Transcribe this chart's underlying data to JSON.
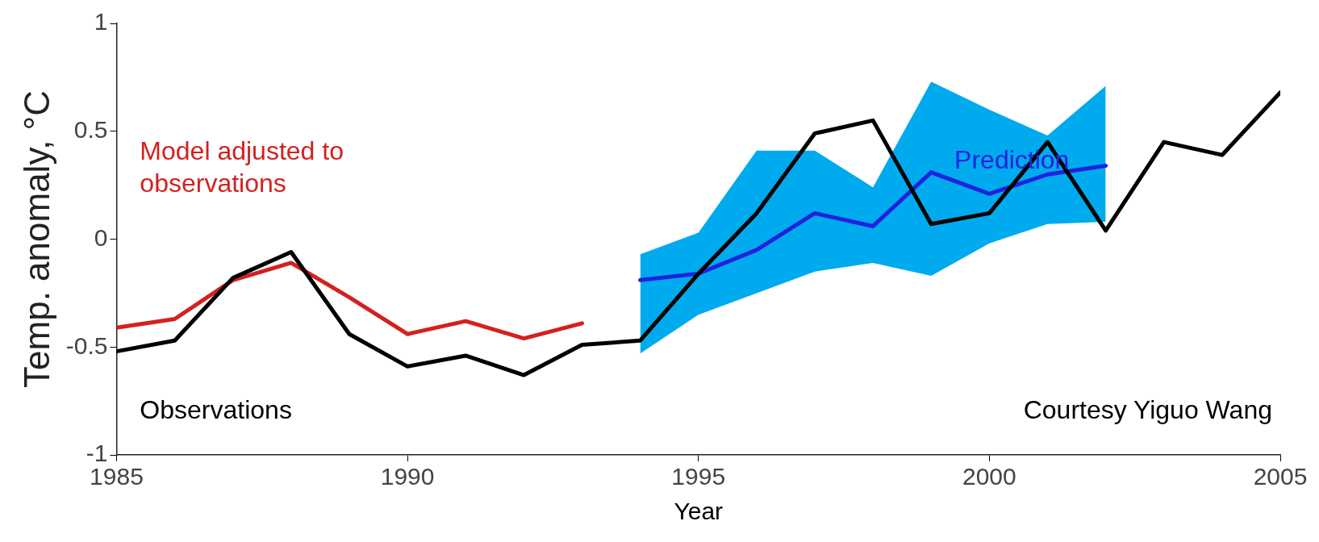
{
  "chart_data": {
    "type": "line",
    "xlabel": "Year",
    "ylabel": "Temp. anomaly, °C",
    "xlim": [
      1985,
      2005
    ],
    "xticks": [
      1985,
      1990,
      1995,
      2000,
      2005
    ],
    "ylim": [
      -1,
      1
    ],
    "yticks": [
      -1,
      -0.5,
      0,
      0.5,
      1
    ],
    "grid": false,
    "legend": false,
    "marker": "none",
    "line_style": "solid",
    "series": [
      {
        "name": "Observations",
        "color": "#000000",
        "x": [
          1985,
          1986,
          1987,
          1988,
          1989,
          1990,
          1991,
          1992,
          1993,
          1994,
          1995,
          1996,
          1997,
          1998,
          1999,
          2000,
          2001,
          2002,
          2003,
          2004,
          2005
        ],
        "values": [
          -0.52,
          -0.47,
          -0.18,
          -0.06,
          -0.44,
          -0.59,
          -0.54,
          -0.63,
          -0.49,
          -0.47,
          -0.16,
          0.12,
          0.49,
          0.55,
          0.07,
          0.12,
          0.45,
          0.04,
          0.45,
          0.39,
          0.68
        ]
      },
      {
        "name": "Model adjusted to observations",
        "color": "#d42020",
        "x": [
          1985,
          1986,
          1987,
          1988,
          1989,
          1990,
          1991,
          1992,
          1993
        ],
        "values": [
          -0.41,
          -0.37,
          -0.19,
          -0.11,
          -0.27,
          -0.44,
          -0.38,
          -0.46,
          -0.39
        ]
      },
      {
        "name": "Prediction",
        "color": "#2222dd",
        "x": [
          1994,
          1995,
          1996,
          1997,
          1998,
          1999,
          2000,
          2001,
          2002
        ],
        "values": [
          -0.19,
          -0.16,
          -0.05,
          0.12,
          0.06,
          0.31,
          0.21,
          0.3,
          0.34
        ],
        "lower": [
          -0.53,
          -0.35,
          -0.25,
          -0.15,
          -0.11,
          -0.17,
          -0.02,
          0.07,
          0.08
        ],
        "upper": [
          -0.07,
          0.03,
          0.41,
          0.41,
          0.24,
          0.73,
          0.6,
          0.48,
          0.71
        ]
      }
    ],
    "annotations": [
      "Courtesy Yiguo Wang"
    ]
  }
}
